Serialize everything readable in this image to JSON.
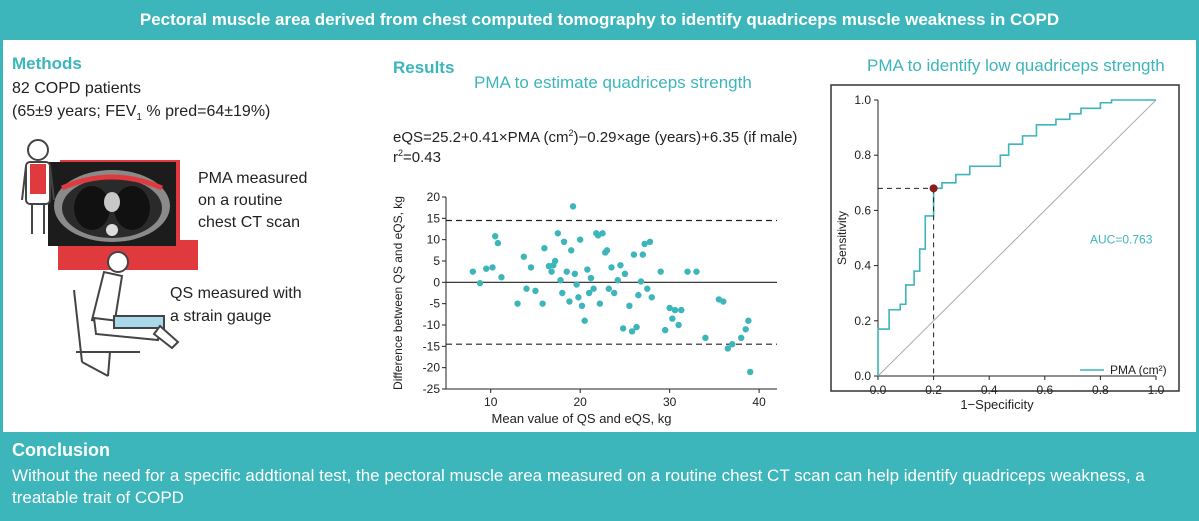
{
  "header": {
    "title": "Pectoral muscle area derived from chest computed tomography to identify quadriceps muscle weakness in COPD"
  },
  "methods": {
    "title": "Methods",
    "patients": "82 COPD patients",
    "demographics_pre": "(65±9 years; FEV",
    "demographics_sub": "1",
    "demographics_post": " % pred=64±19%)",
    "pma_line1": "PMA measured",
    "pma_line2": "on a routine",
    "pma_line3": "chest CT scan",
    "qs_line1": "QS measured with",
    "qs_line2": "a strain gauge"
  },
  "results": {
    "title": "Results",
    "subtitle": "PMA to estimate quadriceps strength",
    "eq_a": "eQS=25.2+0.41×PMA (cm",
    "eq_sup": "2",
    "eq_b": ")−0.29×age (years)+6.35 (if male)",
    "r2_pre": "r",
    "r2_sup": "2",
    "r2_post": "=0.43"
  },
  "roc_section": {
    "title": "PMA to identify low quadriceps strength"
  },
  "conclusion": {
    "title": "Conclusion",
    "text": "Without the need for a specific addtional test, the pectoral muscle area measured on a routine chest CT scan can help identify quadriceps weakness, a treatable trait of COPD"
  },
  "colors": {
    "teal": "#3cb5bb",
    "red": "#e03a3f",
    "dark_red": "#8b1a1a"
  },
  "chart_data": [
    {
      "type": "scatter",
      "title": "",
      "xlabel": "Mean value of QS and eQS, kg",
      "ylabel": "Difference between QS and eQS, kg",
      "xlim": [
        5,
        42
      ],
      "ylim": [
        -25,
        20
      ],
      "xticks": [
        10,
        20,
        30,
        40
      ],
      "yticks": [
        -25,
        -20,
        -15,
        -10,
        -5,
        0,
        5,
        10,
        15,
        20
      ],
      "hlines": [
        {
          "y": 14.5,
          "style": "dashed"
        },
        {
          "y": 0,
          "style": "solid"
        },
        {
          "y": -14.5,
          "style": "dashed"
        }
      ],
      "points": [
        [
          8,
          2.5
        ],
        [
          8.8,
          -0.2
        ],
        [
          9.5,
          3.2
        ],
        [
          10.2,
          3.5
        ],
        [
          10.5,
          10.8
        ],
        [
          10.8,
          9.2
        ],
        [
          11.2,
          1.2
        ],
        [
          13,
          -5
        ],
        [
          13.7,
          6
        ],
        [
          14,
          -1.5
        ],
        [
          14.5,
          3.5
        ],
        [
          15,
          -2
        ],
        [
          15.8,
          -5
        ],
        [
          16,
          8
        ],
        [
          16.5,
          3.8
        ],
        [
          16.8,
          2.5
        ],
        [
          17,
          4
        ],
        [
          17.2,
          5
        ],
        [
          17.5,
          11.5
        ],
        [
          17.8,
          0.5
        ],
        [
          18,
          -2.5
        ],
        [
          18.2,
          9.5
        ],
        [
          18.5,
          2.5
        ],
        [
          18.8,
          -4.5
        ],
        [
          19,
          7.5
        ],
        [
          19.2,
          17.8
        ],
        [
          19.4,
          2
        ],
        [
          19.6,
          -0.5
        ],
        [
          19.8,
          -3.5
        ],
        [
          20,
          10
        ],
        [
          20.2,
          -5.5
        ],
        [
          20.5,
          -9
        ],
        [
          20.8,
          3
        ],
        [
          21,
          -2.5
        ],
        [
          21.2,
          1
        ],
        [
          21.5,
          -1.5
        ],
        [
          21.8,
          11.5
        ],
        [
          22,
          11
        ],
        [
          22.2,
          -5
        ],
        [
          22.5,
          11.5
        ],
        [
          22.8,
          7
        ],
        [
          23,
          7.5
        ],
        [
          23.2,
          -1.5
        ],
        [
          23.5,
          3.5
        ],
        [
          23.8,
          -2.5
        ],
        [
          24.2,
          0.5
        ],
        [
          24.5,
          4
        ],
        [
          24.8,
          -10.8
        ],
        [
          25,
          2
        ],
        [
          25.5,
          -5.5
        ],
        [
          25.8,
          -11.5
        ],
        [
          26,
          6.5
        ],
        [
          26.3,
          -10.5
        ],
        [
          26.5,
          -3
        ],
        [
          26.8,
          0.2
        ],
        [
          27,
          6.5
        ],
        [
          27.2,
          9
        ],
        [
          27.5,
          -1.5
        ],
        [
          27.8,
          9.5
        ],
        [
          28,
          -3.5
        ],
        [
          29,
          2.5
        ],
        [
          29.5,
          -11.2
        ],
        [
          30,
          -6
        ],
        [
          30.3,
          -8.5
        ],
        [
          30.6,
          -6.5
        ],
        [
          31,
          -10
        ],
        [
          31.3,
          -6.5
        ],
        [
          32,
          2.5
        ],
        [
          33,
          2.5
        ],
        [
          34,
          -13
        ],
        [
          35.5,
          -4
        ],
        [
          36,
          -4.5
        ],
        [
          36.5,
          -15.5
        ],
        [
          37,
          -14.5
        ],
        [
          38,
          -13
        ],
        [
          38.5,
          -11
        ],
        [
          38.8,
          -9
        ],
        [
          39,
          -21
        ]
      ]
    },
    {
      "type": "line",
      "title": "",
      "xlabel": "1−Specificity",
      "ylabel": "Sensitivity",
      "xlim": [
        0,
        1
      ],
      "ylim": [
        0,
        1
      ],
      "xticks": [
        0.0,
        0.2,
        0.4,
        0.6,
        0.8,
        1.0
      ],
      "yticks": [
        0.0,
        0.2,
        0.4,
        0.6,
        0.8,
        1.0
      ],
      "series": [
        {
          "name": "PMA (cm²)",
          "points": [
            [
              0,
              0
            ],
            [
              0,
              0.17
            ],
            [
              0.04,
              0.17
            ],
            [
              0.04,
              0.24
            ],
            [
              0.08,
              0.24
            ],
            [
              0.08,
              0.26
            ],
            [
              0.1,
              0.26
            ],
            [
              0.1,
              0.33
            ],
            [
              0.13,
              0.33
            ],
            [
              0.13,
              0.38
            ],
            [
              0.15,
              0.38
            ],
            [
              0.15,
              0.46
            ],
            [
              0.17,
              0.46
            ],
            [
              0.17,
              0.58
            ],
            [
              0.2,
              0.58
            ],
            [
              0.2,
              0.68
            ],
            [
              0.23,
              0.68
            ],
            [
              0.23,
              0.7
            ],
            [
              0.28,
              0.7
            ],
            [
              0.28,
              0.73
            ],
            [
              0.33,
              0.73
            ],
            [
              0.33,
              0.76
            ],
            [
              0.44,
              0.76
            ],
            [
              0.44,
              0.8
            ],
            [
              0.47,
              0.8
            ],
            [
              0.47,
              0.84
            ],
            [
              0.52,
              0.84
            ],
            [
              0.52,
              0.87
            ],
            [
              0.57,
              0.87
            ],
            [
              0.57,
              0.91
            ],
            [
              0.64,
              0.91
            ],
            [
              0.64,
              0.93
            ],
            [
              0.69,
              0.93
            ],
            [
              0.69,
              0.95
            ],
            [
              0.73,
              0.95
            ],
            [
              0.73,
              0.97
            ],
            [
              0.8,
              0.97
            ],
            [
              0.8,
              0.99
            ],
            [
              0.84,
              0.99
            ],
            [
              0.84,
              1.0
            ],
            [
              1.0,
              1.0
            ]
          ]
        },
        {
          "name": "reference",
          "points": [
            [
              0,
              0
            ],
            [
              1,
              1
            ]
          ]
        }
      ],
      "cutoff_point": [
        0.2,
        0.68
      ],
      "annotations": [
        "AUC=0.763"
      ],
      "legend": "bottom-right"
    }
  ]
}
